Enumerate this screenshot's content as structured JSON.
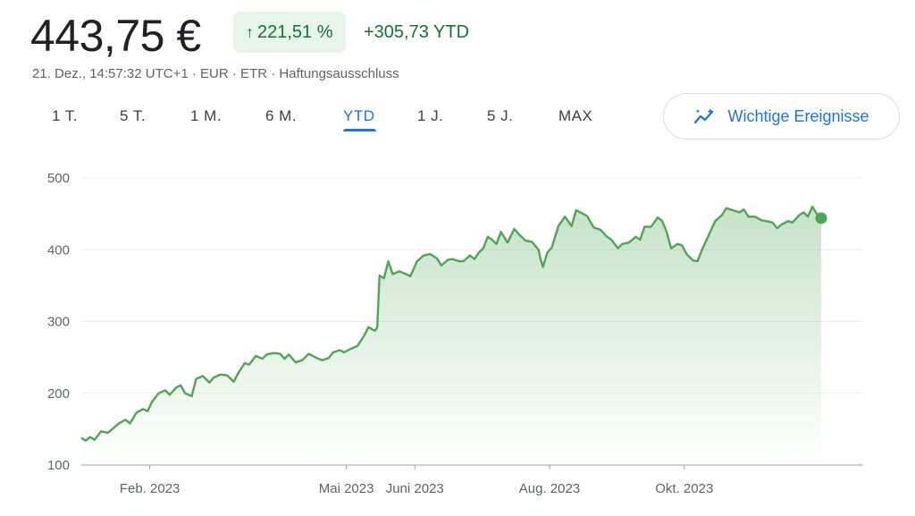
{
  "header": {
    "price": "443,75 €",
    "change_pct": "221,51 %",
    "change_abs": "+305,73 YTD",
    "meta": [
      "21. Dez., 14:57:32 UTC+1",
      "EUR",
      "ETR",
      "Haftungsausschluss"
    ],
    "meta_separator": " · "
  },
  "tabs": [
    {
      "label": "1 T.",
      "active": false
    },
    {
      "label": "5 T.",
      "active": false
    },
    {
      "label": "1 M.",
      "active": false
    },
    {
      "label": "6 M.",
      "active": false
    },
    {
      "label": "YTD",
      "active": true
    },
    {
      "label": "1 J.",
      "active": false
    },
    {
      "label": "5 J.",
      "active": false
    },
    {
      "label": "MAX",
      "active": false
    }
  ],
  "events_button": {
    "label": "Wichtige Ereignisse",
    "icon": "trend-sparkle-icon"
  },
  "colors": {
    "accent": "#1a73e8",
    "positive": "#137333",
    "line": "#4ea655",
    "badge_bg": "#e6f4ea"
  },
  "chart_data": {
    "type": "area",
    "title": "",
    "xlabel": "",
    "ylabel": "",
    "ylim": [
      100,
      500
    ],
    "yticks": [
      500,
      400,
      300,
      200,
      100
    ],
    "xlim": [
      0,
      354
    ],
    "xtick_labels": [
      {
        "label": "Feb. 2023",
        "x": 31
      },
      {
        "label": "Mai 2023",
        "x": 120
      },
      {
        "label": "Juni 2023",
        "x": 151
      },
      {
        "label": "Aug. 2023",
        "x": 212
      },
      {
        "label": "Okt. 2023",
        "x": 273
      }
    ],
    "grid": true,
    "series": [
      {
        "name": "",
        "points": [
          [
            0,
            138
          ],
          [
            2,
            134
          ],
          [
            4,
            139
          ],
          [
            6,
            135
          ],
          [
            9,
            147
          ],
          [
            12,
            145
          ],
          [
            14,
            150
          ],
          [
            17,
            158
          ],
          [
            20,
            163
          ],
          [
            22,
            158
          ],
          [
            25,
            173
          ],
          [
            28,
            178
          ],
          [
            30,
            175
          ],
          [
            32,
            188
          ],
          [
            35,
            200
          ],
          [
            38,
            204
          ],
          [
            40,
            198
          ],
          [
            43,
            208
          ],
          [
            45,
            211
          ],
          [
            47,
            200
          ],
          [
            50,
            196
          ],
          [
            52,
            220
          ],
          [
            55,
            224
          ],
          [
            58,
            215
          ],
          [
            60,
            222
          ],
          [
            63,
            226
          ],
          [
            66,
            225
          ],
          [
            69,
            216
          ],
          [
            71,
            228
          ],
          [
            74,
            242
          ],
          [
            76,
            240
          ],
          [
            79,
            252
          ],
          [
            82,
            248
          ],
          [
            84,
            254
          ],
          [
            87,
            256
          ],
          [
            90,
            255
          ],
          [
            92,
            248
          ],
          [
            94,
            254
          ],
          [
            97,
            243
          ],
          [
            100,
            246
          ],
          [
            103,
            255
          ],
          [
            106,
            250
          ],
          [
            109,
            246
          ],
          [
            112,
            249
          ],
          [
            114,
            257
          ],
          [
            117,
            260
          ],
          [
            119,
            257
          ],
          [
            122,
            262
          ],
          [
            125,
            266
          ],
          [
            128,
            280
          ],
          [
            130,
            292
          ],
          [
            133,
            287
          ],
          [
            134,
            292
          ],
          [
            135,
            364
          ],
          [
            137,
            360
          ],
          [
            139,
            384
          ],
          [
            141,
            366
          ],
          [
            144,
            370
          ],
          [
            147,
            366
          ],
          [
            149,
            363
          ],
          [
            152,
            384
          ],
          [
            155,
            392
          ],
          [
            158,
            394
          ],
          [
            161,
            388
          ],
          [
            163,
            378
          ],
          [
            166,
            386
          ],
          [
            168,
            387
          ],
          [
            171,
            384
          ],
          [
            173,
            384
          ],
          [
            176,
            392
          ],
          [
            178,
            387
          ],
          [
            180,
            396
          ],
          [
            182,
            402
          ],
          [
            184,
            418
          ],
          [
            186,
            414
          ],
          [
            188,
            408
          ],
          [
            190,
            425
          ],
          [
            193,
            410
          ],
          [
            196,
            429
          ],
          [
            198,
            422
          ],
          [
            201,
            413
          ],
          [
            204,
            411
          ],
          [
            207,
            400
          ],
          [
            208,
            386
          ],
          [
            209,
            376
          ],
          [
            211,
            396
          ],
          [
            213,
            403
          ],
          [
            216,
            433
          ],
          [
            219,
            446
          ],
          [
            222,
            433
          ],
          [
            224,
            455
          ],
          [
            226,
            452
          ],
          [
            229,
            447
          ],
          [
            232,
            431
          ],
          [
            235,
            428
          ],
          [
            238,
            418
          ],
          [
            240,
            414
          ],
          [
            243,
            402
          ],
          [
            245,
            408
          ],
          [
            248,
            410
          ],
          [
            251,
            418
          ],
          [
            253,
            414
          ],
          [
            255,
            432
          ],
          [
            258,
            432
          ],
          [
            261,
            445
          ],
          [
            263,
            440
          ],
          [
            265,
            425
          ],
          [
            267,
            402
          ],
          [
            270,
            408
          ],
          [
            272,
            406
          ],
          [
            274,
            394
          ],
          [
            277,
            385
          ],
          [
            279,
            384
          ],
          [
            281,
            400
          ],
          [
            284,
            420
          ],
          [
            287,
            440
          ],
          [
            290,
            448
          ],
          [
            292,
            458
          ],
          [
            295,
            455
          ],
          [
            298,
            452
          ],
          [
            300,
            456
          ],
          [
            302,
            446
          ],
          [
            305,
            446
          ],
          [
            308,
            441
          ],
          [
            310,
            440
          ],
          [
            313,
            438
          ],
          [
            315,
            430
          ],
          [
            317,
            435
          ],
          [
            320,
            440
          ],
          [
            322,
            438
          ],
          [
            325,
            448
          ],
          [
            327,
            452
          ],
          [
            329,
            446
          ],
          [
            331,
            460
          ],
          [
            333,
            450
          ],
          [
            335,
            444
          ]
        ]
      }
    ]
  }
}
